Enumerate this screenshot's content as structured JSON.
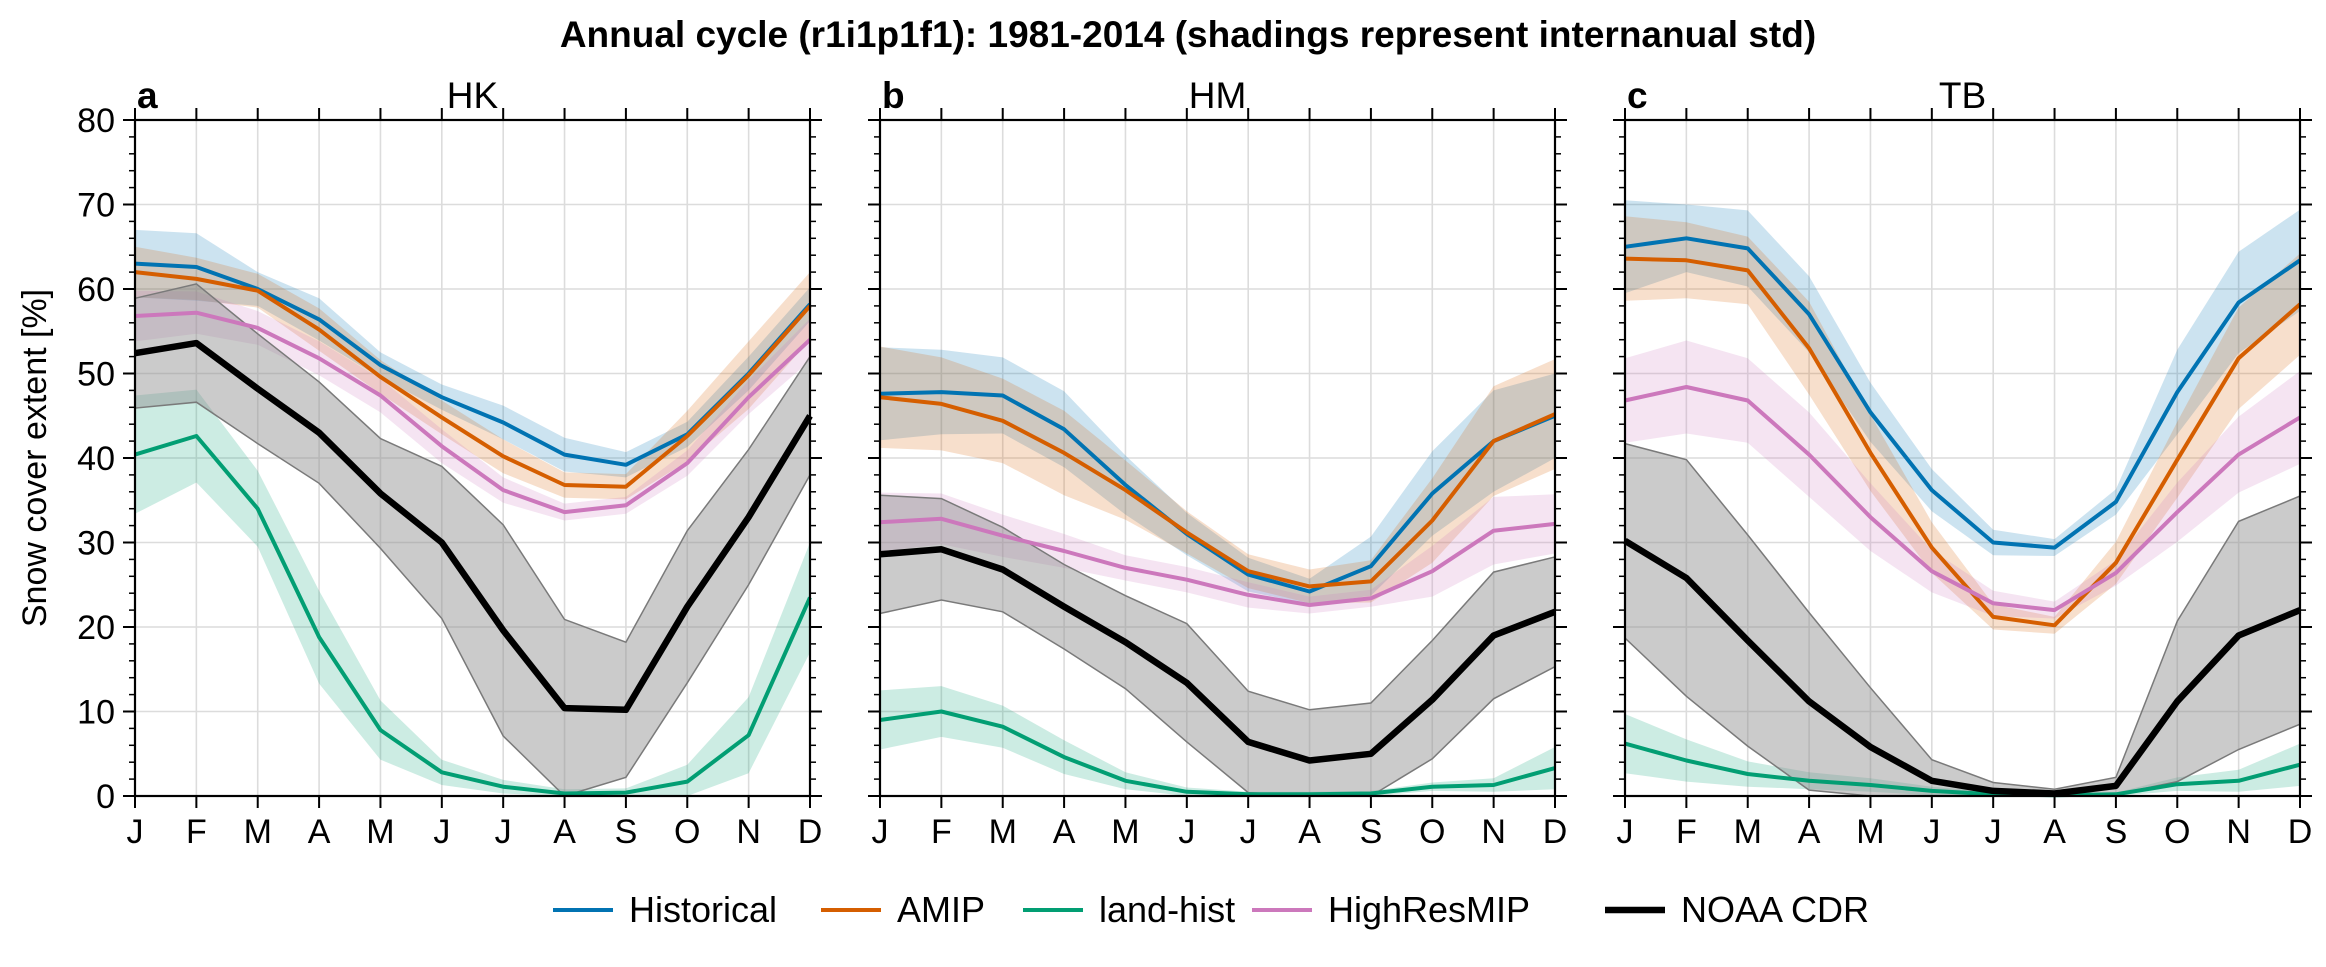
{
  "figure": {
    "title": "Annual cycle (r1i1p1f1): 1981-2014 (shadings represent internanual std)",
    "ylabel": "Snow cover extent [%]"
  },
  "chart_data": [
    {
      "type": "line",
      "panel_letter": "a",
      "title": "HK",
      "categories": [
        "J",
        "F",
        "M",
        "A",
        "M",
        "J",
        "J",
        "A",
        "S",
        "O",
        "N",
        "D"
      ],
      "ylim": [
        0,
        80
      ],
      "yticks": [
        0,
        10,
        20,
        30,
        40,
        50,
        60,
        70,
        80
      ],
      "grid": true,
      "series": [
        {
          "name": "Historical",
          "color": "#0173b2",
          "values": [
            63,
            62.6,
            60,
            56.4,
            51,
            47.2,
            44.2,
            40.4,
            39.2,
            42.8,
            50,
            58.2
          ],
          "std": [
            4,
            4,
            2,
            2.5,
            1.5,
            1.5,
            2,
            2,
            1.5,
            1.5,
            2,
            2
          ]
        },
        {
          "name": "AMIP",
          "color": "#d55e00",
          "values": [
            62,
            61.2,
            59.8,
            55.2,
            49.6,
            44.8,
            40.2,
            36.8,
            36.6,
            42.6,
            49.8,
            58
          ],
          "std": [
            3,
            2.5,
            2,
            2.5,
            2,
            2,
            2,
            1.5,
            1.5,
            3,
            4,
            4
          ]
        },
        {
          "name": "land-hist",
          "color": "#029e73",
          "values": [
            40.4,
            42.6,
            34,
            18.8,
            7.8,
            2.8,
            1.1,
            0.3,
            0.4,
            1.7,
            7.2,
            23.5
          ],
          "std": [
            7,
            5.5,
            4.5,
            5.5,
            3.5,
            1.5,
            0.8,
            0.5,
            0.5,
            2,
            4.5,
            6.5
          ]
        },
        {
          "name": "HighResMIP",
          "color": "#cc78bc",
          "values": [
            56.8,
            57.2,
            55.4,
            51.8,
            47.4,
            41.4,
            36.2,
            33.6,
            34.4,
            39.4,
            47.2,
            54
          ],
          "std": [
            3,
            2.5,
            2,
            2,
            2,
            2,
            1.5,
            1,
            1,
            1.5,
            2,
            2.5
          ]
        },
        {
          "name": "NOAA CDR",
          "color": "#000000",
          "values": [
            52.4,
            53.6,
            48.2,
            43,
            35.8,
            30,
            19.6,
            10.4,
            10.2,
            22.4,
            33,
            45
          ],
          "std": [
            6.5,
            7,
            6.5,
            6,
            6.5,
            9,
            12.5,
            10.5,
            8,
            9,
            8,
            7
          ]
        }
      ]
    },
    {
      "type": "line",
      "panel_letter": "b",
      "title": "HM",
      "categories": [
        "J",
        "F",
        "M",
        "A",
        "M",
        "J",
        "J",
        "A",
        "S",
        "O",
        "N",
        "D"
      ],
      "ylim": [
        0,
        80
      ],
      "yticks": [
        0,
        10,
        20,
        30,
        40,
        50,
        60,
        70,
        80
      ],
      "grid": true,
      "series": [
        {
          "name": "Historical",
          "color": "#0173b2",
          "values": [
            47.6,
            47.8,
            47.4,
            43.4,
            36.8,
            31,
            26.2,
            24.2,
            27.2,
            35.8,
            42,
            45
          ],
          "std": [
            5.5,
            5,
            4.5,
            4.5,
            3.5,
            2.5,
            2,
            1.5,
            3.5,
            5,
            6,
            5
          ]
        },
        {
          "name": "AMIP",
          "color": "#d55e00",
          "values": [
            47.2,
            46.4,
            44.4,
            40.6,
            36.2,
            31.2,
            26.6,
            24.8,
            25.4,
            32.6,
            42,
            45.2
          ],
          "std": [
            6,
            5.5,
            5,
            5,
            3.5,
            2.5,
            2,
            2,
            2.5,
            5,
            6.5,
            6.5
          ]
        },
        {
          "name": "land-hist",
          "color": "#029e73",
          "values": [
            9,
            10,
            8.2,
            4.6,
            1.8,
            0.5,
            0.2,
            0.2,
            0.3,
            1.1,
            1.3,
            3.3
          ],
          "std": [
            3.5,
            3,
            2.5,
            2,
            1,
            0.5,
            0.3,
            0.3,
            0.3,
            0.5,
            0.8,
            2.5
          ]
        },
        {
          "name": "HighResMIP",
          "color": "#cc78bc",
          "values": [
            32.4,
            32.8,
            30.8,
            29,
            27,
            25.6,
            23.8,
            22.6,
            23.4,
            26.6,
            31.4,
            32.2
          ],
          "std": [
            3.5,
            3,
            2.5,
            2,
            1.5,
            1.5,
            1.5,
            1,
            1,
            3,
            4,
            3.5
          ]
        },
        {
          "name": "NOAA CDR",
          "color": "#000000",
          "values": [
            28.6,
            29.2,
            26.8,
            22.4,
            18.2,
            13.4,
            6.4,
            4.2,
            5,
            11.4,
            19,
            21.8
          ],
          "std": [
            7,
            6,
            5,
            5,
            5.5,
            7,
            6,
            6,
            6,
            7,
            7.5,
            6.5
          ]
        }
      ]
    },
    {
      "type": "line",
      "panel_letter": "c",
      "title": "TB",
      "categories": [
        "J",
        "F",
        "M",
        "A",
        "M",
        "J",
        "J",
        "A",
        "S",
        "O",
        "N",
        "D"
      ],
      "ylim": [
        0,
        80
      ],
      "yticks": [
        0,
        10,
        20,
        30,
        40,
        50,
        60,
        70,
        80
      ],
      "grid": true,
      "series": [
        {
          "name": "Historical",
          "color": "#0173b2",
          "values": [
            65,
            66,
            64.8,
            57,
            45.4,
            36.2,
            30,
            29.4,
            34.8,
            47.8,
            58.4,
            63.4
          ],
          "std": [
            5.5,
            4,
            4.5,
            4.5,
            3.5,
            2.5,
            1.5,
            1,
            1.5,
            5,
            6,
            6
          ]
        },
        {
          "name": "AMIP",
          "color": "#d55e00",
          "values": [
            63.6,
            63.4,
            62.2,
            53,
            40.6,
            29.4,
            21.2,
            20.2,
            27.6,
            39.8,
            51.8,
            58.2
          ],
          "std": [
            5,
            4.5,
            4,
            5.5,
            4.5,
            3,
            1.5,
            1,
            2.5,
            4.5,
            6,
            6
          ]
        },
        {
          "name": "land-hist",
          "color": "#029e73",
          "values": [
            6.2,
            4.2,
            2.6,
            1.8,
            1.3,
            0.6,
            0.2,
            0.1,
            0.2,
            1.4,
            1.8,
            3.7
          ],
          "std": [
            3.5,
            2.5,
            1.5,
            1,
            0.8,
            0.5,
            0.3,
            0.2,
            0.2,
            0.8,
            1.3,
            2.5
          ]
        },
        {
          "name": "HighResMIP",
          "color": "#cc78bc",
          "values": [
            46.8,
            48.4,
            46.8,
            40.4,
            33,
            26.6,
            22.8,
            22,
            26.4,
            33.6,
            40.4,
            44.8
          ],
          "std": [
            5,
            5.5,
            5,
            5,
            4,
            2.5,
            1.5,
            1,
            1.5,
            3.5,
            4.5,
            5.5
          ]
        },
        {
          "name": "NOAA CDR",
          "color": "#000000",
          "values": [
            30.2,
            25.8,
            18.4,
            11.2,
            5.8,
            1.8,
            0.6,
            0.3,
            1.2,
            11.2,
            19,
            22
          ],
          "std": [
            11.5,
            14,
            12.5,
            10.5,
            7,
            2.5,
            1,
            0.5,
            1,
            9.5,
            13.5,
            13.5
          ]
        }
      ]
    }
  ],
  "legend": [
    {
      "label": "Historical",
      "color": "#0173b2"
    },
    {
      "label": "AMIP",
      "color": "#d55e00"
    },
    {
      "label": "land-hist",
      "color": "#029e73"
    },
    {
      "label": "HighResMIP",
      "color": "#cc78bc"
    },
    {
      "label": "NOAA CDR",
      "color": "#000000"
    }
  ]
}
